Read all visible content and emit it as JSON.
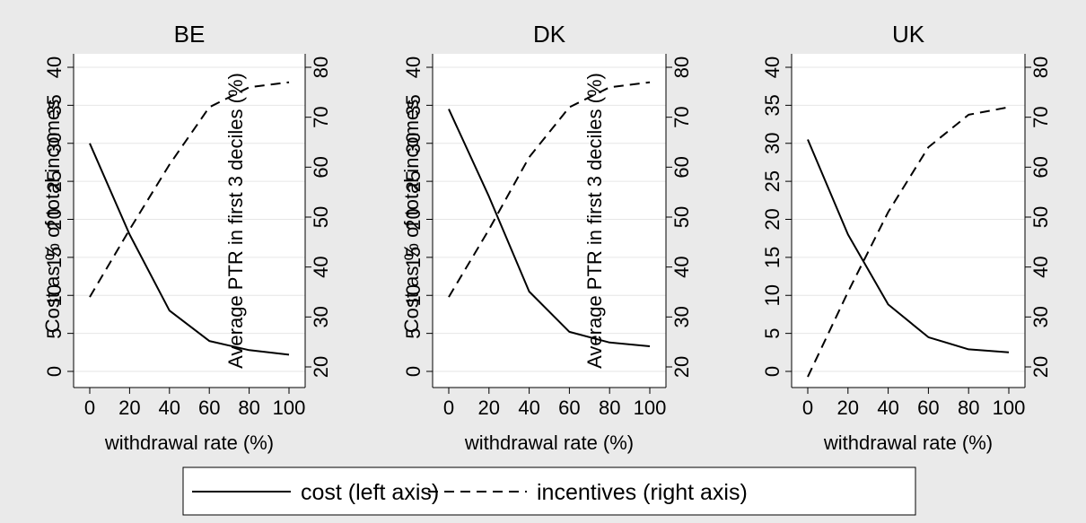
{
  "chart_data": [
    {
      "type": "line",
      "title": "BE",
      "xlabel": "withdrawal rate (%)",
      "ylabel_left": "Cost as % of total incomes",
      "ylabel_right": "Average PTR in first 3 deciles (%)",
      "x": [
        0,
        20,
        40,
        60,
        80,
        100
      ],
      "xlim": [
        0,
        100
      ],
      "xticks": [
        0,
        20,
        40,
        60,
        80,
        100
      ],
      "ylim_left": [
        0,
        40
      ],
      "yticks_left": [
        0,
        5,
        10,
        15,
        20,
        25,
        30,
        35,
        40
      ],
      "ylim_right": [
        20,
        80
      ],
      "yticks_right": [
        20,
        30,
        40,
        50,
        60,
        70,
        80
      ],
      "series": [
        {
          "name": "cost (left axis)",
          "axis": "left",
          "style": "solid",
          "values": [
            30,
            18,
            8,
            4,
            2.8,
            2.2
          ]
        },
        {
          "name": "incentives (right axis)",
          "axis": "right",
          "style": "dashed",
          "values": [
            34,
            47.5,
            60.5,
            72,
            76,
            77
          ]
        }
      ]
    },
    {
      "type": "line",
      "title": "DK",
      "xlabel": "withdrawal rate (%)",
      "ylabel_left": "Cost as % of total incomes",
      "ylabel_right": "Average PTR in first 3 deciles (%)",
      "x": [
        0,
        20,
        40,
        60,
        80,
        100
      ],
      "xlim": [
        0,
        100
      ],
      "xticks": [
        0,
        20,
        40,
        60,
        80,
        100
      ],
      "ylim_left": [
        0,
        40
      ],
      "yticks_left": [
        0,
        5,
        10,
        15,
        20,
        25,
        30,
        35,
        40
      ],
      "ylim_right": [
        20,
        80
      ],
      "yticks_right": [
        20,
        30,
        40,
        50,
        60,
        70,
        80
      ],
      "series": [
        {
          "name": "cost (left axis)",
          "axis": "left",
          "style": "solid",
          "values": [
            34.5,
            23,
            10.5,
            5.2,
            3.8,
            3.3
          ]
        },
        {
          "name": "incentives (right axis)",
          "axis": "right",
          "style": "dashed",
          "values": [
            34,
            47.5,
            62,
            72,
            76,
            77
          ]
        }
      ]
    },
    {
      "type": "line",
      "title": "UK",
      "xlabel": "withdrawal rate (%)",
      "ylabel_left": "",
      "ylabel_right": "",
      "x": [
        0,
        20,
        40,
        60,
        80,
        100
      ],
      "xlim": [
        0,
        100
      ],
      "xticks": [
        0,
        20,
        40,
        60,
        80,
        100
      ],
      "ylim_left": [
        0,
        40
      ],
      "yticks_left": [
        0,
        5,
        10,
        15,
        20,
        25,
        30,
        35,
        40
      ],
      "ylim_right": [
        20,
        80
      ],
      "yticks_right": [
        20,
        30,
        40,
        50,
        60,
        70,
        80
      ],
      "series": [
        {
          "name": "cost (left axis)",
          "axis": "left",
          "style": "solid",
          "values": [
            30.5,
            18,
            8.8,
            4.5,
            2.9,
            2.5
          ]
        },
        {
          "name": "incentives (right axis)",
          "axis": "right",
          "style": "dashed",
          "values": [
            18,
            35,
            51,
            64,
            70.5,
            72
          ]
        }
      ]
    }
  ],
  "legend": {
    "placement": "bottom",
    "items": [
      {
        "label": "cost (left axis)",
        "style": "solid"
      },
      {
        "label": "incentives (right axis)",
        "style": "dashed"
      }
    ]
  }
}
